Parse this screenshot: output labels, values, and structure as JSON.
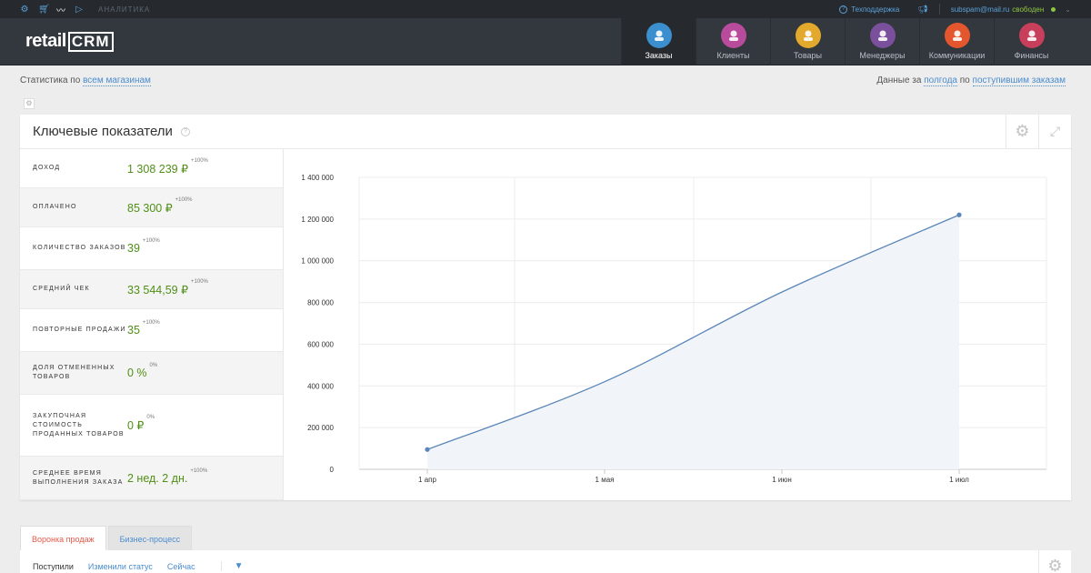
{
  "topbar": {
    "icons": [
      "gear-icon",
      "cart-icon",
      "chart-icon",
      "play-icon"
    ],
    "section": "АНАЛИТИКА",
    "support": "Техподдержка",
    "email": "subspam@mail.ru",
    "status": "свободен"
  },
  "logo": {
    "text1": "retail",
    "text2": "CRM"
  },
  "nav": [
    {
      "label": "Заказы",
      "icon": "orders-cart-icon",
      "color": "#3b8fce",
      "active": true
    },
    {
      "label": "Клиенты",
      "icon": "clients-avatar-icon",
      "color": "#b94b9c",
      "active": false
    },
    {
      "label": "Товары",
      "icon": "goods-box-icon",
      "color": "#e2a92c",
      "active": false
    },
    {
      "label": "Менеджеры",
      "icon": "managers-avatar-icon",
      "color": "#7a4f9b",
      "active": false
    },
    {
      "label": "Коммуникации",
      "icon": "communications-chat-icon",
      "color": "#e4572e",
      "active": false
    },
    {
      "label": "Финансы",
      "icon": "finance-doc-icon",
      "color": "#c83f5c",
      "active": false
    }
  ],
  "subbar": {
    "left_prefix": "Статистика по",
    "left_link": "всем магазинам",
    "right_prefix": "Данные за",
    "right_link1": "полгода",
    "right_mid": "по",
    "right_link2": "поступившим заказам"
  },
  "card": {
    "title": "Ключевые показатели"
  },
  "metrics": [
    {
      "label": "ДОХОД",
      "value": "1 308 239 ₽",
      "change": "+100%"
    },
    {
      "label": "ОПЛАЧЕНО",
      "value": "85 300 ₽",
      "change": "+100%"
    },
    {
      "label": "КОЛИЧЕСТВО ЗАКАЗОВ",
      "value": "39",
      "change": "+100%"
    },
    {
      "label": "СРЕДНИЙ ЧЕК",
      "value": "33 544,59 ₽",
      "change": "+100%"
    },
    {
      "label": "ПОВТОРНЫЕ ПРОДАЖИ",
      "value": "35",
      "change": "+100%"
    },
    {
      "label": "ДОЛЯ ОТМЕНЕННЫХ ТОВАРОВ",
      "value": "0 %",
      "change": "0%"
    },
    {
      "label": "ЗАКУПОЧНАЯ СТОИМОСТЬ ПРОДАННЫХ ТОВАРОВ",
      "value": "0 ₽",
      "change": "0%"
    },
    {
      "label": "СРЕДНЕЕ ВРЕМЯ ВЫПОЛНЕНИЯ ЗАКАЗА",
      "value": "2 нед. 2 дн.",
      "change": "+100%"
    }
  ],
  "chart_data": {
    "type": "line",
    "x_ticks": [
      "1 апр",
      "1 мая",
      "1 июн",
      "1 июл"
    ],
    "y_ticks": [
      "0",
      "200 000",
      "400 000",
      "600 000",
      "800 000",
      "1 000 000",
      "1 200 000",
      "1 400 000"
    ],
    "ylim": [
      0,
      1400000
    ],
    "grid": true,
    "series": [
      {
        "points": [
          {
            "x": "1 апр",
            "y": 95000
          },
          {
            "x": "1 мая",
            "y": 420000
          },
          {
            "x": "1 июн",
            "y": 850000
          },
          {
            "x": "1 июл",
            "y": 1220000
          }
        ]
      }
    ],
    "line_color": "#5b87b8"
  },
  "tabs": [
    {
      "label": "Воронка продаж",
      "active": true
    },
    {
      "label": "Бизнес-процесс",
      "active": false
    }
  ],
  "filters": [
    "Поступили",
    "Изменили статус",
    "Сейчас"
  ]
}
